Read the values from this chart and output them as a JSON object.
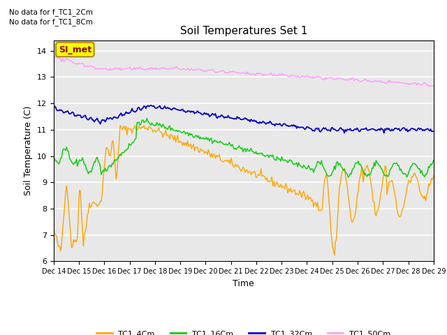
{
  "title": "Soil Temperatures Set 1",
  "xlabel": "Time",
  "ylabel": "Soil Temperature (C)",
  "ylim": [
    6.0,
    14.4
  ],
  "yticks": [
    6.0,
    7.0,
    8.0,
    9.0,
    10.0,
    11.0,
    12.0,
    13.0,
    14.0
  ],
  "x_tick_labels": [
    "Dec 14",
    "Dec 15",
    "Dec 16",
    "Dec 17",
    "Dec 18",
    "Dec 19",
    "Dec 20",
    "Dec 21",
    "Dec 22",
    "Dec 23",
    "Dec 24",
    "Dec 25",
    "Dec 26",
    "Dec 27",
    "Dec 28",
    "Dec 29"
  ],
  "annotations": [
    "No data for f_TC1_2Cm",
    "No data for f_TC1_8Cm"
  ],
  "legend_label_box": "SI_met",
  "colors": {
    "TC1_4Cm": "#FFA500",
    "TC1_16Cm": "#00CC00",
    "TC1_32Cm": "#0000CC",
    "TC1_50Cm": "#FF99FF"
  },
  "background_color": "#E8E8E8",
  "grid_color": "#FFFFFF"
}
